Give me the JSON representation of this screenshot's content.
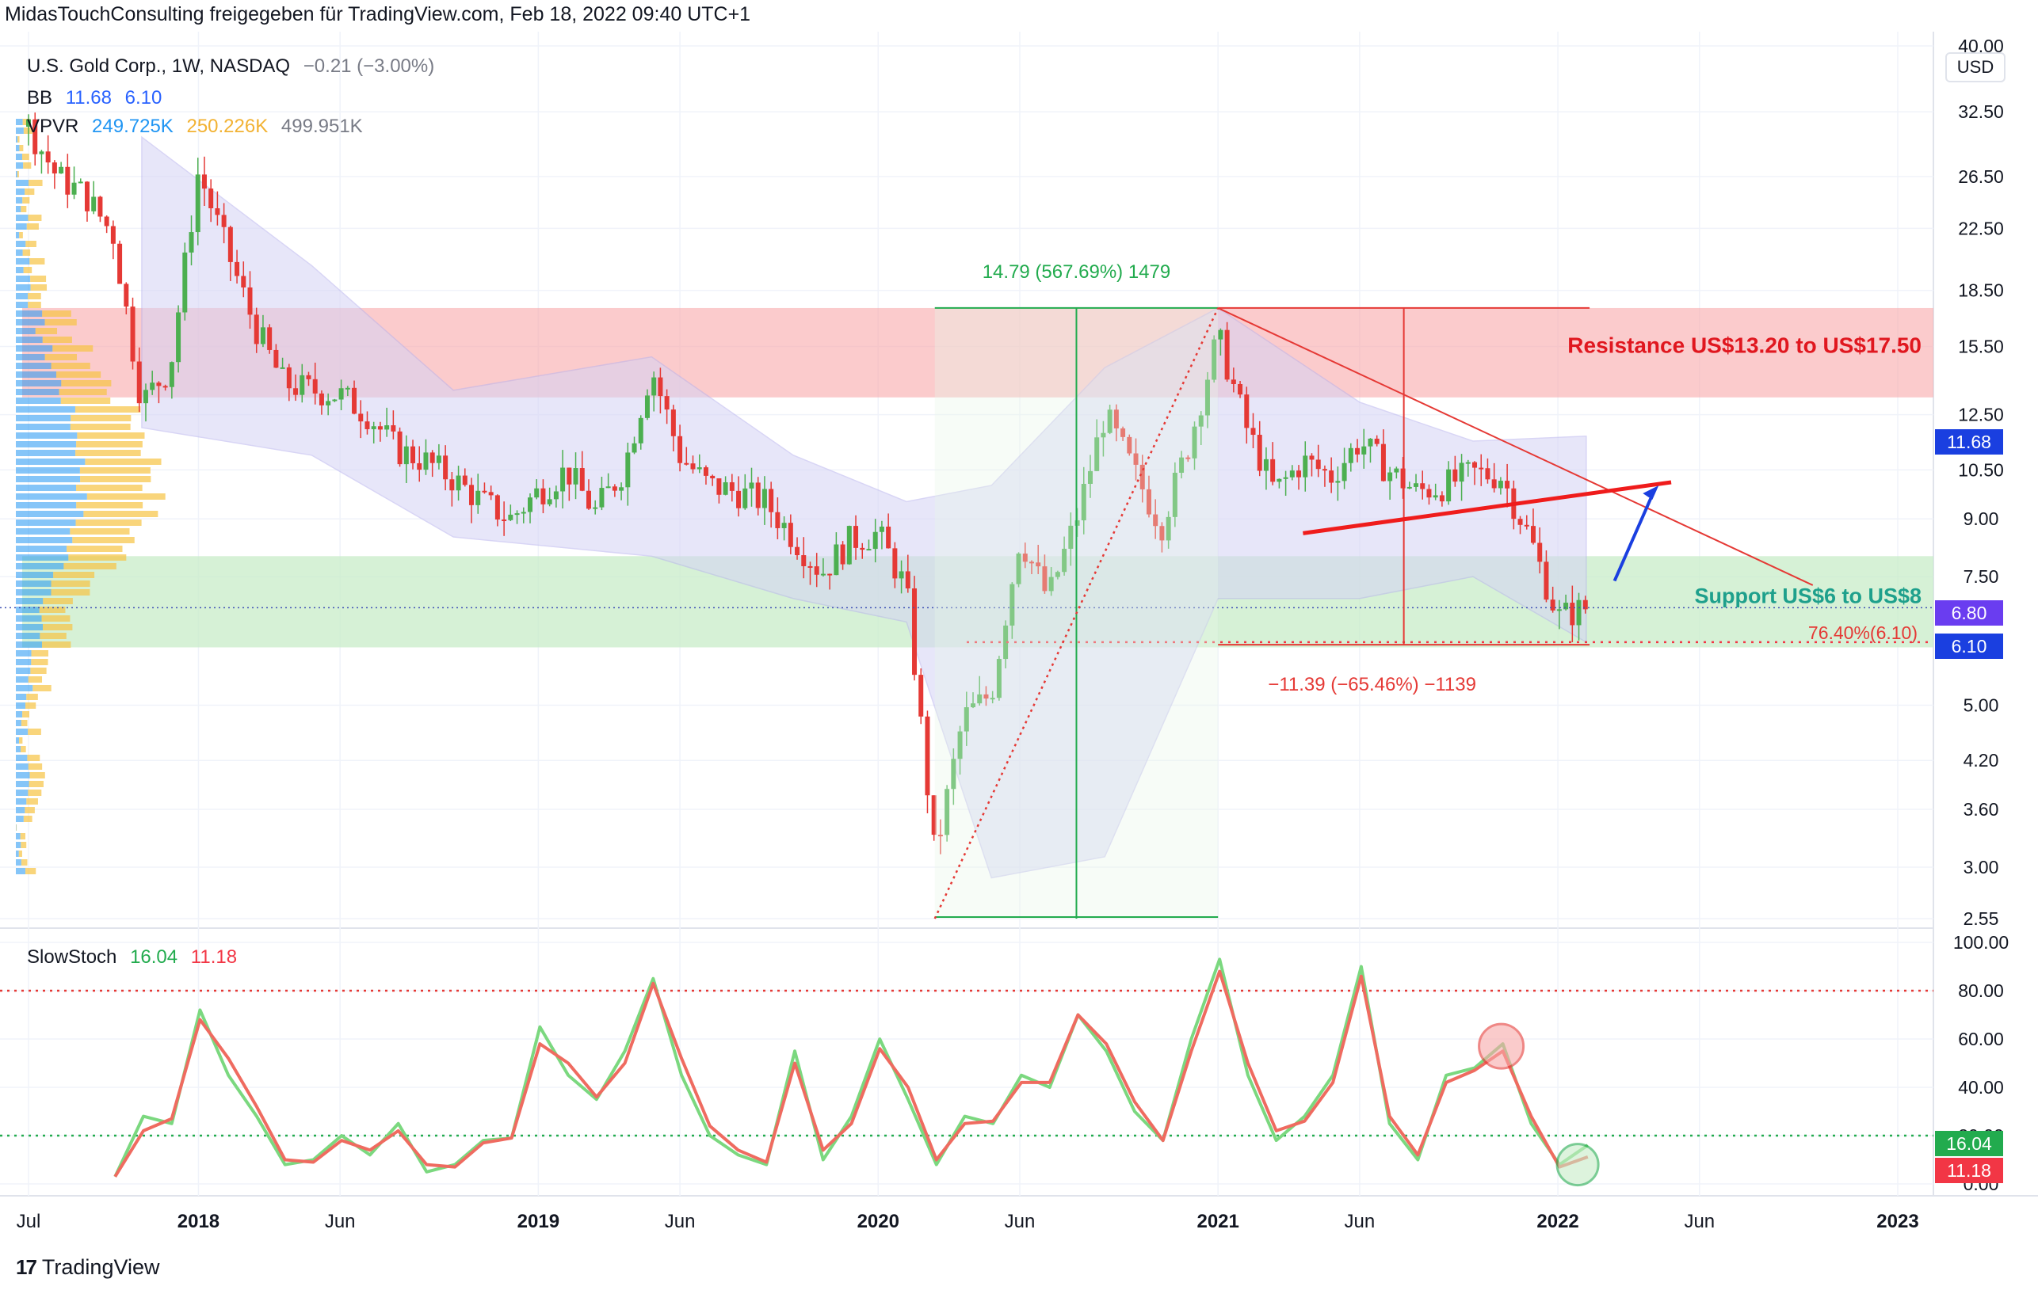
{
  "header": {
    "attribution": "MidasTouchConsulting freigegeben für TradingView.com, Feb 18, 2022 09:40 UTC+1"
  },
  "legend": {
    "symbol": "U.S. Gold Corp., 1W, NASDAQ",
    "change": "−0.21 (−3.00%)",
    "bb_label": "BB",
    "bb_upper": "11.68",
    "bb_lower": "6.10",
    "vpvr_label": "VPVR",
    "vpvr_up": "249.725K",
    "vpvr_down": "250.226K",
    "vpvr_total": "499.951K",
    "stoch_label": "SlowStoch",
    "stoch_k": "16.04",
    "stoch_d": "11.18"
  },
  "colors": {
    "up": "#4caf50",
    "down": "#e53935",
    "bb_fill": "#d5d3f5",
    "resistance_fill": "#f8a9aa",
    "support_fill": "#c8ecc8",
    "accent_blue": "#1a3fe0"
  },
  "annotations": {
    "resistance": "Resistance US$13.20 to US$17.50",
    "support": "Support US$6 to US$8",
    "fib": "76.40%(6.10)",
    "rise": "14.79 (567.69%) 1479",
    "fall": "−11.39 (−65.46%) −1139"
  },
  "price_badges": {
    "bb_upper": "11.68",
    "last": "6.80",
    "bb_lower": "6.10",
    "stoch_k": "16.04",
    "stoch_d": "11.18"
  },
  "footer": {
    "brand": "TradingView"
  },
  "chart_data": [
    {
      "type": "candlestick",
      "title": "U.S. Gold Corp., 1W, NASDAQ",
      "yscale": "log",
      "currency": "USD",
      "ylim": [
        2.55,
        40.0
      ],
      "y_ticks": [
        "40.00",
        "32.50",
        "26.50",
        "22.50",
        "18.50",
        "15.50",
        "12.50",
        "10.50",
        "9.00",
        "7.50",
        "5.00",
        "4.20",
        "3.60",
        "3.00",
        "2.55"
      ],
      "x_ticks": [
        "Jul",
        "2018",
        "Jun",
        "2019",
        "Jun",
        "2020",
        "Jun",
        "2021",
        "Jun",
        "2022",
        "Jun",
        "2023"
      ],
      "x_range": [
        "2017-07",
        "2023-01"
      ],
      "close_path": [
        {
          "date": "2017-07",
          "close": 31.0
        },
        {
          "date": "2017-08",
          "close": 26.5
        },
        {
          "date": "2017-09",
          "close": 25.0
        },
        {
          "date": "2017-10",
          "close": 22.0
        },
        {
          "date": "2017-11",
          "close": 13.0
        },
        {
          "date": "2017-12",
          "close": 14.5
        },
        {
          "date": "2018-01",
          "close": 27.0
        },
        {
          "date": "2018-02",
          "close": 21.0
        },
        {
          "date": "2018-03",
          "close": 16.5
        },
        {
          "date": "2018-04",
          "close": 13.8
        },
        {
          "date": "2018-05",
          "close": 13.5
        },
        {
          "date": "2018-06",
          "close": 13.3
        },
        {
          "date": "2018-07",
          "close": 12.5
        },
        {
          "date": "2018-08",
          "close": 11.2
        },
        {
          "date": "2018-09",
          "close": 10.8
        },
        {
          "date": "2018-10",
          "close": 10.2
        },
        {
          "date": "2018-11",
          "close": 9.5
        },
        {
          "date": "2018-12",
          "close": 9.0
        },
        {
          "date": "2019-01",
          "close": 9.8
        },
        {
          "date": "2019-02",
          "close": 10.5
        },
        {
          "date": "2019-03",
          "close": 9.2
        },
        {
          "date": "2019-04",
          "close": 10.5
        },
        {
          "date": "2019-05",
          "close": 14.5
        },
        {
          "date": "2019-06",
          "close": 11.0
        },
        {
          "date": "2019-07",
          "close": 10.0
        },
        {
          "date": "2019-08",
          "close": 9.8
        },
        {
          "date": "2019-09",
          "close": 9.5
        },
        {
          "date": "2019-10",
          "close": 8.5
        },
        {
          "date": "2019-11",
          "close": 7.6
        },
        {
          "date": "2019-12",
          "close": 8.4
        },
        {
          "date": "2020-01",
          "close": 8.6
        },
        {
          "date": "2020-02",
          "close": 7.2
        },
        {
          "date": "2020-03",
          "close": 3.1
        },
        {
          "date": "2020-04",
          "close": 4.8
        },
        {
          "date": "2020-05",
          "close": 5.2
        },
        {
          "date": "2020-06",
          "close": 8.5
        },
        {
          "date": "2020-07",
          "close": 7.0
        },
        {
          "date": "2020-08",
          "close": 9.0
        },
        {
          "date": "2020-09",
          "close": 12.5
        },
        {
          "date": "2020-10",
          "close": 10.5
        },
        {
          "date": "2020-11",
          "close": 8.8
        },
        {
          "date": "2020-12",
          "close": 11.5
        },
        {
          "date": "2021-01",
          "close": 16.0
        },
        {
          "date": "2021-02",
          "close": 12.0
        },
        {
          "date": "2021-03",
          "close": 9.8
        },
        {
          "date": "2021-04",
          "close": 10.8
        },
        {
          "date": "2021-05",
          "close": 10.3
        },
        {
          "date": "2021-06",
          "close": 11.5
        },
        {
          "date": "2021-07",
          "close": 10.5
        },
        {
          "date": "2021-08",
          "close": 9.8
        },
        {
          "date": "2021-09",
          "close": 10.0
        },
        {
          "date": "2021-10",
          "close": 10.4
        },
        {
          "date": "2021-11",
          "close": 10.3
        },
        {
          "date": "2021-12",
          "close": 8.5
        },
        {
          "date": "2022-01",
          "close": 6.6
        },
        {
          "date": "2022-02",
          "close": 6.8
        }
      ],
      "bb_upper_path": [
        {
          "date": "2017-11",
          "close": 30.0
        },
        {
          "date": "2018-05",
          "close": 20.0
        },
        {
          "date": "2018-10",
          "close": 13.5
        },
        {
          "date": "2019-05",
          "close": 15.0
        },
        {
          "date": "2019-10",
          "close": 11.0
        },
        {
          "date": "2020-02",
          "close": 9.5
        },
        {
          "date": "2020-05",
          "close": 10.0
        },
        {
          "date": "2020-09",
          "close": 14.5
        },
        {
          "date": "2021-01",
          "close": 17.5
        },
        {
          "date": "2021-06",
          "close": 13.0
        },
        {
          "date": "2021-10",
          "close": 11.5
        },
        {
          "date": "2022-02",
          "close": 11.68
        }
      ],
      "bb_lower_path": [
        {
          "date": "2017-11",
          "close": 12.0
        },
        {
          "date": "2018-05",
          "close": 11.0
        },
        {
          "date": "2018-10",
          "close": 8.5
        },
        {
          "date": "2019-05",
          "close": 8.0
        },
        {
          "date": "2019-10",
          "close": 7.0
        },
        {
          "date": "2020-02",
          "close": 6.5
        },
        {
          "date": "2020-05",
          "close": 2.9
        },
        {
          "date": "2020-09",
          "close": 3.1
        },
        {
          "date": "2021-01",
          "close": 7.0
        },
        {
          "date": "2021-06",
          "close": 7.0
        },
        {
          "date": "2021-10",
          "close": 7.5
        },
        {
          "date": "2022-02",
          "close": 6.1
        }
      ],
      "zones": [
        {
          "name": "resistance",
          "from": 13.2,
          "to": 17.5
        },
        {
          "name": "support",
          "from": 6.0,
          "to": 8.0
        }
      ],
      "levels": {
        "last": 6.8,
        "fib_76_4": 6.1
      },
      "grid": true
    },
    {
      "type": "line",
      "title": "SlowStoch",
      "ylim": [
        0,
        100
      ],
      "y_ticks": [
        "100.00",
        "80.00",
        "60.00",
        "40.00",
        "20.00",
        "0.00"
      ],
      "overbought": 80,
      "oversold": 20,
      "series": [
        {
          "name": "%K",
          "values": [
            {
              "date": "2017-10",
              "value": 3
            },
            {
              "date": "2017-11",
              "value": 28
            },
            {
              "date": "2017-12",
              "value": 25
            },
            {
              "date": "2018-01",
              "value": 72
            },
            {
              "date": "2018-02",
              "value": 45
            },
            {
              "date": "2018-03",
              "value": 28
            },
            {
              "date": "2018-04",
              "value": 8
            },
            {
              "date": "2018-05",
              "value": 10
            },
            {
              "date": "2018-06",
              "value": 20
            },
            {
              "date": "2018-07",
              "value": 12
            },
            {
              "date": "2018-08",
              "value": 25
            },
            {
              "date": "2018-09",
              "value": 5
            },
            {
              "date": "2018-10",
              "value": 8
            },
            {
              "date": "2018-11",
              "value": 18
            },
            {
              "date": "2018-12",
              "value": 19
            },
            {
              "date": "2019-01",
              "value": 65
            },
            {
              "date": "2019-02",
              "value": 45
            },
            {
              "date": "2019-03",
              "value": 35
            },
            {
              "date": "2019-04",
              "value": 55
            },
            {
              "date": "2019-05",
              "value": 85
            },
            {
              "date": "2019-06",
              "value": 45
            },
            {
              "date": "2019-07",
              "value": 20
            },
            {
              "date": "2019-08",
              "value": 12
            },
            {
              "date": "2019-09",
              "value": 8
            },
            {
              "date": "2019-10",
              "value": 55
            },
            {
              "date": "2019-11",
              "value": 10
            },
            {
              "date": "2019-12",
              "value": 28
            },
            {
              "date": "2020-01",
              "value": 60
            },
            {
              "date": "2020-02",
              "value": 35
            },
            {
              "date": "2020-03",
              "value": 8
            },
            {
              "date": "2020-04",
              "value": 28
            },
            {
              "date": "2020-05",
              "value": 25
            },
            {
              "date": "2020-06",
              "value": 45
            },
            {
              "date": "2020-07",
              "value": 40
            },
            {
              "date": "2020-08",
              "value": 70
            },
            {
              "date": "2020-09",
              "value": 55
            },
            {
              "date": "2020-10",
              "value": 30
            },
            {
              "date": "2020-11",
              "value": 18
            },
            {
              "date": "2020-12",
              "value": 60
            },
            {
              "date": "2021-01",
              "value": 93
            },
            {
              "date": "2021-02",
              "value": 45
            },
            {
              "date": "2021-03",
              "value": 18
            },
            {
              "date": "2021-04",
              "value": 28
            },
            {
              "date": "2021-05",
              "value": 45
            },
            {
              "date": "2021-06",
              "value": 90
            },
            {
              "date": "2021-07",
              "value": 25
            },
            {
              "date": "2021-08",
              "value": 10
            },
            {
              "date": "2021-09",
              "value": 45
            },
            {
              "date": "2021-10",
              "value": 48
            },
            {
              "date": "2021-11",
              "value": 58
            },
            {
              "date": "2021-12",
              "value": 25
            },
            {
              "date": "2022-01",
              "value": 8
            },
            {
              "date": "2022-02",
              "value": 16.04
            }
          ]
        },
        {
          "name": "%D",
          "values": [
            {
              "date": "2017-10",
              "value": 3
            },
            {
              "date": "2017-11",
              "value": 22
            },
            {
              "date": "2017-12",
              "value": 27
            },
            {
              "date": "2018-01",
              "value": 68
            },
            {
              "date": "2018-02",
              "value": 52
            },
            {
              "date": "2018-03",
              "value": 32
            },
            {
              "date": "2018-04",
              "value": 10
            },
            {
              "date": "2018-05",
              "value": 9
            },
            {
              "date": "2018-06",
              "value": 18
            },
            {
              "date": "2018-07",
              "value": 14
            },
            {
              "date": "2018-08",
              "value": 22
            },
            {
              "date": "2018-09",
              "value": 8
            },
            {
              "date": "2018-10",
              "value": 7
            },
            {
              "date": "2018-11",
              "value": 17
            },
            {
              "date": "2018-12",
              "value": 19
            },
            {
              "date": "2019-01",
              "value": 58
            },
            {
              "date": "2019-02",
              "value": 50
            },
            {
              "date": "2019-03",
              "value": 36
            },
            {
              "date": "2019-04",
              "value": 50
            },
            {
              "date": "2019-05",
              "value": 83
            },
            {
              "date": "2019-06",
              "value": 52
            },
            {
              "date": "2019-07",
              "value": 24
            },
            {
              "date": "2019-08",
              "value": 14
            },
            {
              "date": "2019-09",
              "value": 9
            },
            {
              "date": "2019-10",
              "value": 50
            },
            {
              "date": "2019-11",
              "value": 14
            },
            {
              "date": "2019-12",
              "value": 25
            },
            {
              "date": "2020-01",
              "value": 56
            },
            {
              "date": "2020-02",
              "value": 40
            },
            {
              "date": "2020-03",
              "value": 10
            },
            {
              "date": "2020-04",
              "value": 25
            },
            {
              "date": "2020-05",
              "value": 26
            },
            {
              "date": "2020-06",
              "value": 42
            },
            {
              "date": "2020-07",
              "value": 42
            },
            {
              "date": "2020-08",
              "value": 70
            },
            {
              "date": "2020-09",
              "value": 58
            },
            {
              "date": "2020-10",
              "value": 34
            },
            {
              "date": "2020-11",
              "value": 18
            },
            {
              "date": "2020-12",
              "value": 55
            },
            {
              "date": "2021-01",
              "value": 88
            },
            {
              "date": "2021-02",
              "value": 50
            },
            {
              "date": "2021-03",
              "value": 22
            },
            {
              "date": "2021-04",
              "value": 26
            },
            {
              "date": "2021-05",
              "value": 42
            },
            {
              "date": "2021-06",
              "value": 86
            },
            {
              "date": "2021-07",
              "value": 28
            },
            {
              "date": "2021-08",
              "value": 12
            },
            {
              "date": "2021-09",
              "value": 42
            },
            {
              "date": "2021-10",
              "value": 47
            },
            {
              "date": "2021-11",
              "value": 55
            },
            {
              "date": "2021-12",
              "value": 28
            },
            {
              "date": "2022-01",
              "value": 7
            },
            {
              "date": "2022-02",
              "value": 11.18
            }
          ]
        }
      ]
    }
  ]
}
